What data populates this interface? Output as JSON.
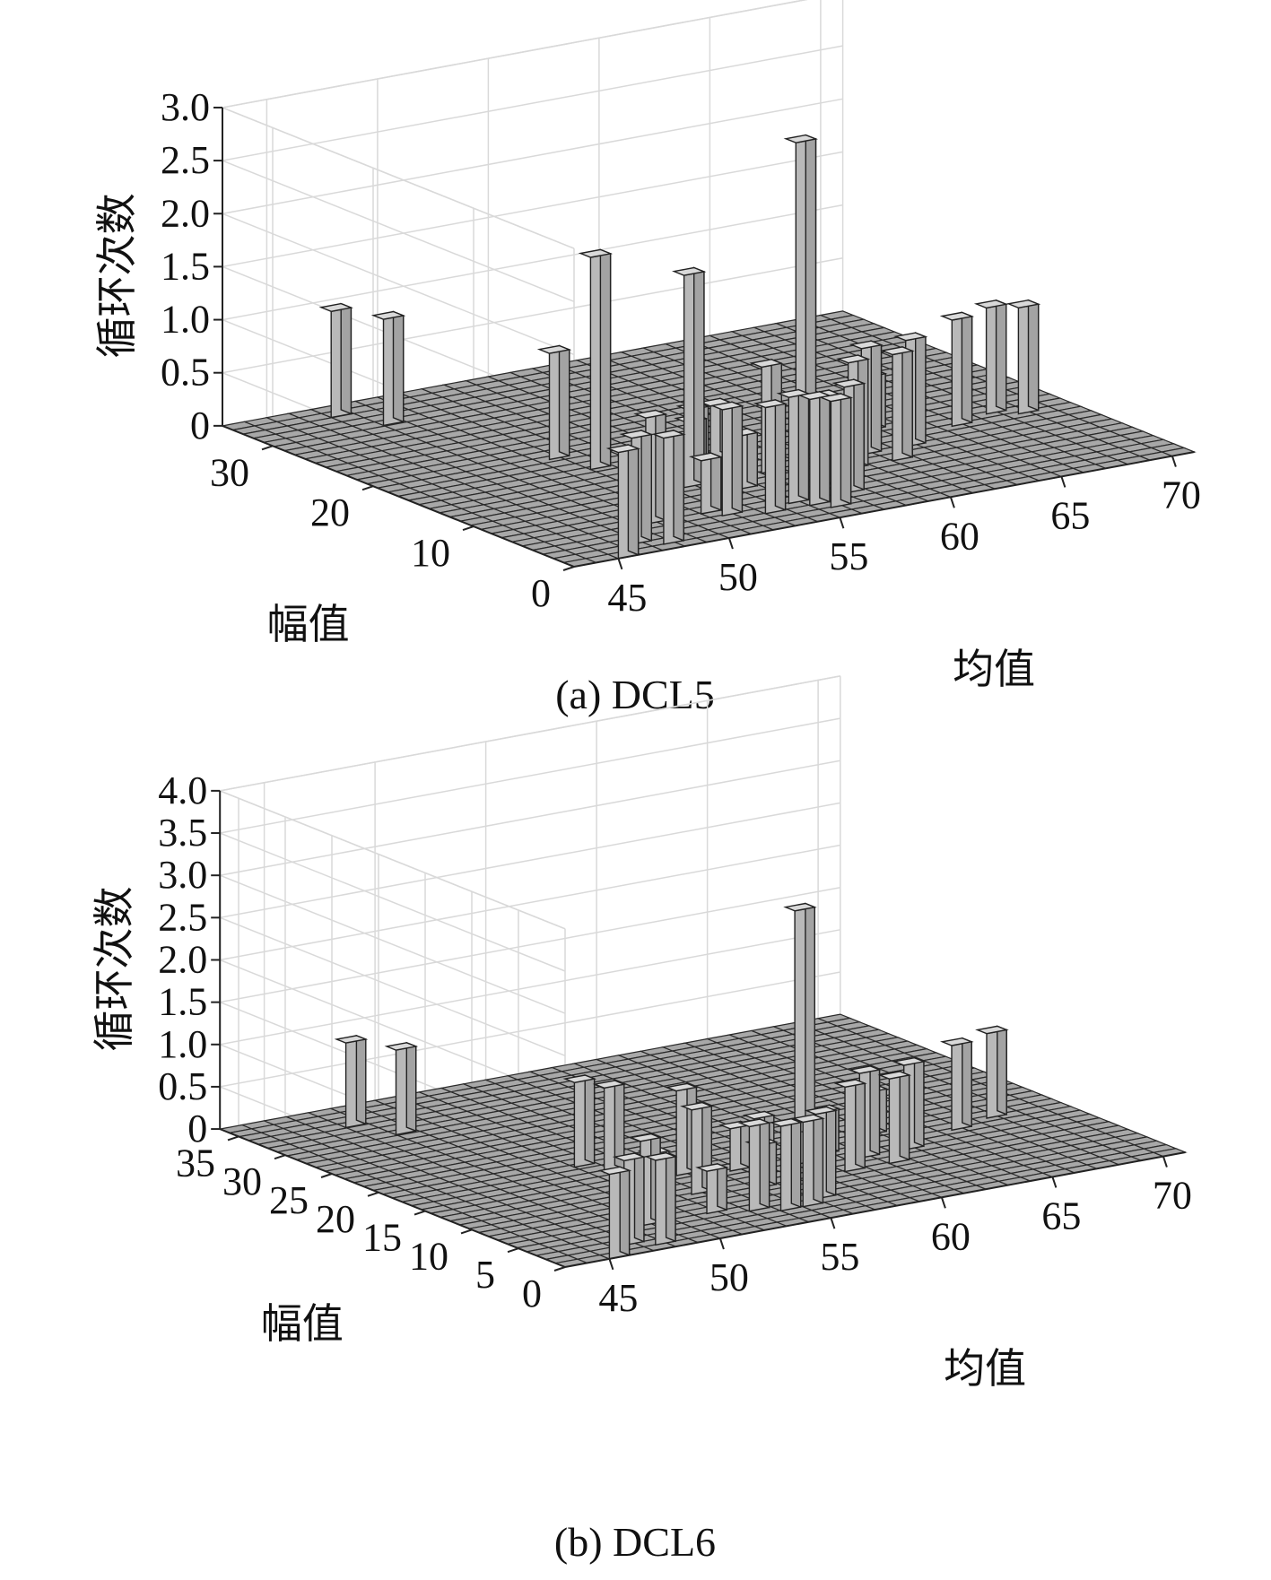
{
  "chart_data": [
    {
      "type": "bar3d",
      "caption": "(a) DCL5",
      "zlabel": "循环次数",
      "xlabel": "均值",
      "ylabel": "幅值",
      "x_ticks": [
        "45",
        "50",
        "55",
        "60",
        "65",
        "70"
      ],
      "y_ticks": [
        "0",
        "10",
        "20",
        "30"
      ],
      "z_ticks": [
        "0",
        "0.5",
        "1.0",
        "1.5",
        "2.0",
        "2.5",
        "3.0"
      ],
      "xlim": [
        43,
        71
      ],
      "ylim": [
        0,
        35
      ],
      "zlim": [
        0,
        3
      ],
      "grid": true,
      "bars": [
        {
          "mean": 45,
          "amp": 0,
          "count": 1.0
        },
        {
          "mean": 46.5,
          "amp": 2,
          "count": 1.0
        },
        {
          "mean": 47.5,
          "amp": 1,
          "count": 1.0
        },
        {
          "mean": 48.5,
          "amp": 5,
          "count": 1.0
        },
        {
          "mean": 47,
          "amp": 33,
          "count": 1.0
        },
        {
          "mean": 48,
          "amp": 30,
          "count": 1.0
        },
        {
          "mean": 50.5,
          "amp": 19,
          "count": 1.0
        },
        {
          "mean": 51,
          "amp": 16,
          "count": 2.0
        },
        {
          "mean": 50.5,
          "amp": 8,
          "count": 0.5
        },
        {
          "mean": 51,
          "amp": 5,
          "count": 0.5
        },
        {
          "mean": 51.5,
          "amp": 4,
          "count": 1.0
        },
        {
          "mean": 52.5,
          "amp": 10,
          "count": 2.0
        },
        {
          "mean": 53,
          "amp": 3,
          "count": 1.0
        },
        {
          "mean": 53.5,
          "amp": 12,
          "count": 0.5
        },
        {
          "mean": 54.5,
          "amp": 14,
          "count": 0.5
        },
        {
          "mean": 54,
          "amp": 8,
          "count": 0.5
        },
        {
          "mean": 55.5,
          "amp": 14,
          "count": 0.5
        },
        {
          "mean": 54.5,
          "amp": 4,
          "count": 1.0
        },
        {
          "mean": 55,
          "amp": 3,
          "count": 1.0
        },
        {
          "mean": 55.5,
          "amp": 2,
          "count": 1.0
        },
        {
          "mean": 56,
          "amp": 10,
          "count": 1.0
        },
        {
          "mean": 56.5,
          "amp": 6,
          "count": 0.5
        },
        {
          "mean": 57,
          "amp": 4,
          "count": 1.0
        },
        {
          "mean": 58,
          "amp": 11,
          "count": 3.0
        },
        {
          "mean": 59.5,
          "amp": 12,
          "count": 0.5
        },
        {
          "mean": 59,
          "amp": 8,
          "count": 1.0
        },
        {
          "mean": 60.5,
          "amp": 10,
          "count": 1.0
        },
        {
          "mean": 61,
          "amp": 8,
          "count": 1.0
        },
        {
          "mean": 62.5,
          "amp": 14,
          "count": 0.5
        },
        {
          "mean": 62.5,
          "amp": 10,
          "count": 1.0
        },
        {
          "mean": 65.5,
          "amp": 12,
          "count": 1.0
        },
        {
          "mean": 67.5,
          "amp": 13,
          "count": 1.0
        },
        {
          "mean": 68.5,
          "amp": 12,
          "count": 1.0
        }
      ]
    },
    {
      "type": "bar3d",
      "caption": "(b) DCL6",
      "zlabel": "循环次数",
      "xlabel": "均值",
      "ylabel": "幅值",
      "x_ticks": [
        "45",
        "50",
        "55",
        "60",
        "65",
        "70"
      ],
      "y_ticks": [
        "0",
        "5",
        "10",
        "15",
        "20",
        "25",
        "30",
        "35"
      ],
      "z_ticks": [
        "0",
        "0.5",
        "1.0",
        "1.5",
        "2.0",
        "2.5",
        "3.0",
        "3.5",
        "4.0"
      ],
      "xlim": [
        43,
        71
      ],
      "ylim": [
        0,
        37
      ],
      "zlim": [
        0,
        4
      ],
      "grid": true,
      "bars": [
        {
          "mean": 45,
          "amp": 0,
          "count": 1.0
        },
        {
          "mean": 46.5,
          "amp": 2,
          "count": 1.0
        },
        {
          "mean": 47.5,
          "amp": 1,
          "count": 1.0
        },
        {
          "mean": 48.5,
          "amp": 5,
          "count": 1.0
        },
        {
          "mean": 47,
          "amp": 33,
          "count": 1.0
        },
        {
          "mean": 48,
          "amp": 30,
          "count": 1.0
        },
        {
          "mean": 51,
          "amp": 18,
          "count": 1.0
        },
        {
          "mean": 51.5,
          "amp": 16,
          "count": 1.0
        },
        {
          "mean": 51,
          "amp": 10,
          "count": 0.5
        },
        {
          "mean": 51.5,
          "amp": 5,
          "count": 0.5
        },
        {
          "mean": 52.5,
          "amp": 9,
          "count": 1.0
        },
        {
          "mean": 53.5,
          "amp": 13,
          "count": 1.0
        },
        {
          "mean": 53,
          "amp": 4,
          "count": 1.0
        },
        {
          "mean": 54,
          "amp": 3,
          "count": 1.0
        },
        {
          "mean": 55,
          "amp": 3,
          "count": 1.0
        },
        {
          "mean": 55.5,
          "amp": 12,
          "count": 0.5
        },
        {
          "mean": 55,
          "amp": 8,
          "count": 0.5
        },
        {
          "mean": 56,
          "amp": 4,
          "count": 1.0
        },
        {
          "mean": 57,
          "amp": 13,
          "count": 0.5
        },
        {
          "mean": 57.5,
          "amp": 8,
          "count": 0.5
        },
        {
          "mean": 58,
          "amp": 11,
          "count": 3.0
        },
        {
          "mean": 59.5,
          "amp": 12,
          "count": 0.5
        },
        {
          "mean": 59,
          "amp": 8,
          "count": 1.0
        },
        {
          "mean": 60.5,
          "amp": 10,
          "count": 1.0
        },
        {
          "mean": 61,
          "amp": 8,
          "count": 1.0
        },
        {
          "mean": 62.5,
          "amp": 14,
          "count": 0.5
        },
        {
          "mean": 62.5,
          "amp": 10,
          "count": 1.0
        },
        {
          "mean": 65.5,
          "amp": 12,
          "count": 1.0
        },
        {
          "mean": 67.5,
          "amp": 13,
          "count": 1.0
        }
      ]
    }
  ]
}
